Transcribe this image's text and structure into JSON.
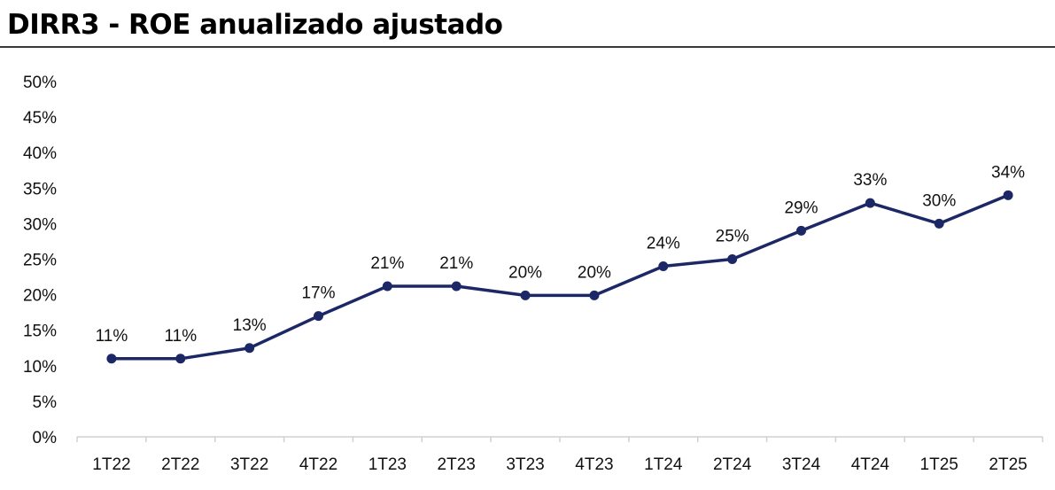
{
  "header": {
    "title": "DIRR3 - ROE anualizado ajustado"
  },
  "chart_data": {
    "type": "line",
    "title": "DIRR3 - ROE anualizado ajustado",
    "xlabel": "",
    "ylabel": "",
    "categories": [
      "1T22",
      "2T22",
      "3T22",
      "4T22",
      "1T23",
      "2T23",
      "3T23",
      "4T23",
      "1T24",
      "2T24",
      "3T24",
      "4T24",
      "1T25",
      "2T25"
    ],
    "series": [
      {
        "values": [
          11.0,
          11.0,
          12.5,
          17.0,
          21.2,
          21.2,
          19.9,
          19.9,
          24.0,
          25.0,
          29.0,
          32.9,
          30.0,
          34.0
        ],
        "data_labels": [
          "11%",
          "11%",
          "13%",
          "17%",
          "21%",
          "21%",
          "20%",
          "20%",
          "24%",
          "25%",
          "29%",
          "33%",
          "30%",
          "34%"
        ],
        "color": "#1c2866"
      }
    ],
    "ylim": [
      0,
      50
    ],
    "yticks": [
      0,
      5,
      10,
      15,
      20,
      25,
      30,
      35,
      40,
      45,
      50
    ],
    "ytick_labels": [
      "0%",
      "5%",
      "10%",
      "15%",
      "20%",
      "25%",
      "30%",
      "35%",
      "40%",
      "45%",
      "50%"
    ],
    "grid": false,
    "legend": "none"
  }
}
